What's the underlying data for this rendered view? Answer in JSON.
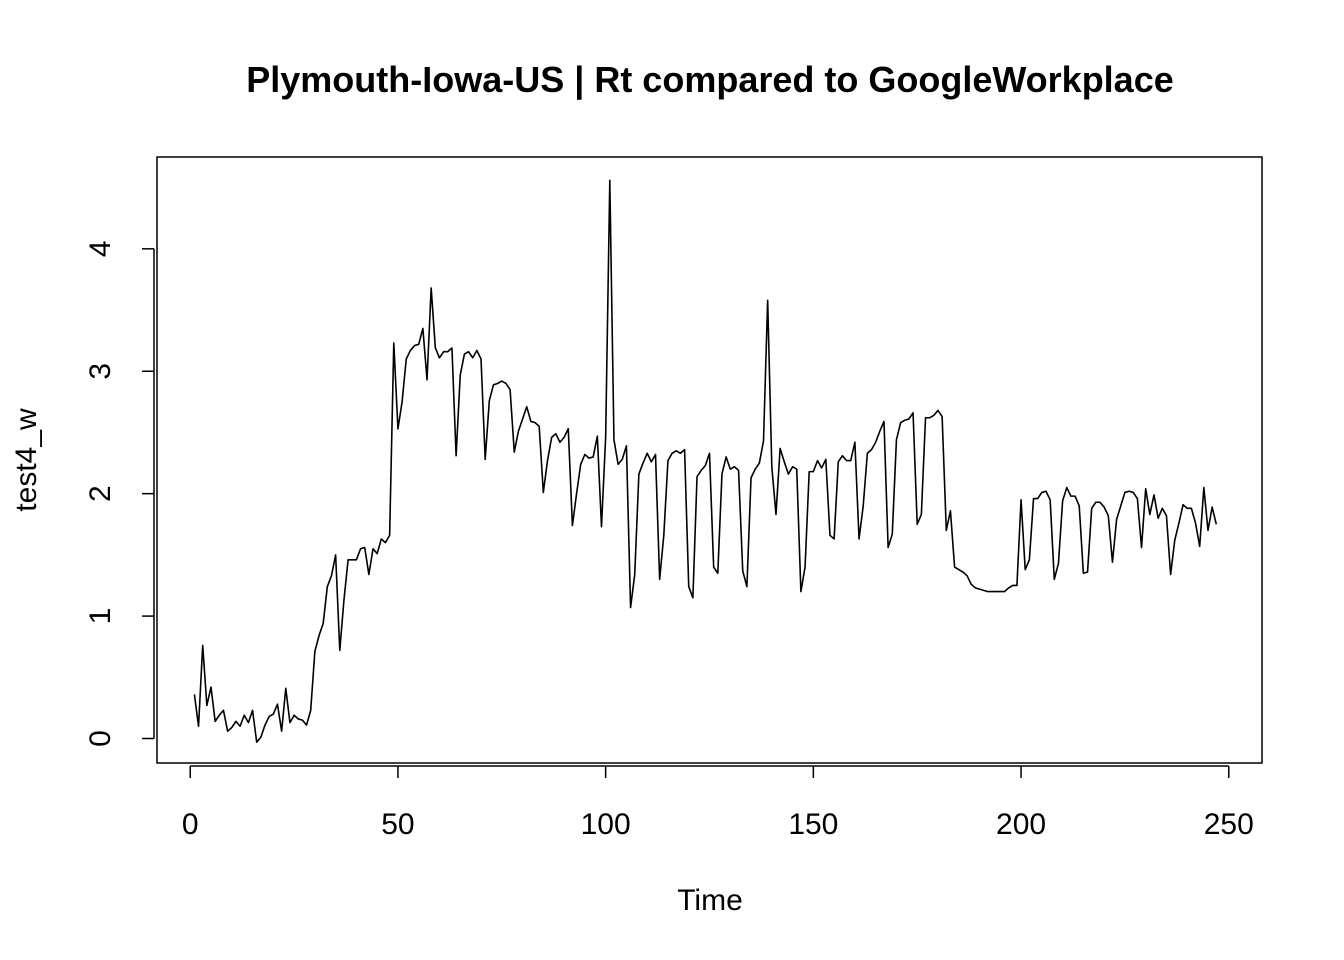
{
  "chart_data": {
    "type": "line",
    "title": "Plymouth-Iowa-US | Rt compared to GoogleWorkplace",
    "xlabel": "Time",
    "ylabel": "test4_w",
    "xlim": [
      -8,
      258
    ],
    "ylim": [
      -0.2,
      4.75
    ],
    "x_ticks": [
      0,
      50,
      100,
      150,
      200,
      250
    ],
    "x_tick_labels": [
      "0",
      "50",
      "100",
      "150",
      "200",
      "250"
    ],
    "y_ticks": [
      0,
      1,
      2,
      3,
      4
    ],
    "y_tick_labels": [
      "0",
      "1",
      "2",
      "3",
      "4"
    ],
    "grid": false,
    "legend": "none",
    "series": [
      {
        "color": "#000000",
        "x_start": 1,
        "values": [
          0.36,
          0.1,
          0.76,
          0.27,
          0.42,
          0.14,
          0.19,
          0.23,
          0.06,
          0.09,
          0.14,
          0.1,
          0.19,
          0.13,
          0.23,
          -0.03,
          0.01,
          0.11,
          0.18,
          0.2,
          0.28,
          0.06,
          0.41,
          0.13,
          0.19,
          0.16,
          0.15,
          0.11,
          0.23,
          0.71,
          0.84,
          0.94,
          1.24,
          1.33,
          1.5,
          0.72,
          1.13,
          1.46,
          1.46,
          1.46,
          1.55,
          1.56,
          1.34,
          1.55,
          1.51,
          1.63,
          1.6,
          1.66,
          3.23,
          2.53,
          2.75,
          3.1,
          3.17,
          3.21,
          3.22,
          3.35,
          2.93,
          3.68,
          3.19,
          3.11,
          3.16,
          3.16,
          3.19,
          2.31,
          2.97,
          3.14,
          3.16,
          3.11,
          3.17,
          3.1,
          2.28,
          2.76,
          2.89,
          2.9,
          2.92,
          2.9,
          2.85,
          2.34,
          2.51,
          2.61,
          2.71,
          2.59,
          2.58,
          2.55,
          2.01,
          2.27,
          2.46,
          2.49,
          2.42,
          2.46,
          2.53,
          1.74,
          2.0,
          2.24,
          2.32,
          2.29,
          2.3,
          2.47,
          1.73,
          2.46,
          4.56,
          2.44,
          2.24,
          2.28,
          2.39,
          1.07,
          1.34,
          2.16,
          2.25,
          2.33,
          2.26,
          2.32,
          1.3,
          1.66,
          2.27,
          2.33,
          2.35,
          2.33,
          2.36,
          1.24,
          1.15,
          2.14,
          2.19,
          2.23,
          2.33,
          1.4,
          1.35,
          2.16,
          2.3,
          2.2,
          2.22,
          2.19,
          1.37,
          1.24,
          2.13,
          2.2,
          2.25,
          2.43,
          3.58,
          2.22,
          1.83,
          2.37,
          2.26,
          2.16,
          2.22,
          2.2,
          1.2,
          1.4,
          2.18,
          2.18,
          2.27,
          2.21,
          2.28,
          1.66,
          1.63,
          2.26,
          2.31,
          2.27,
          2.27,
          2.42,
          1.63,
          1.9,
          2.33,
          2.36,
          2.42,
          2.51,
          2.59,
          1.56,
          1.67,
          2.44,
          2.58,
          2.6,
          2.61,
          2.66,
          1.75,
          1.83,
          2.62,
          2.62,
          2.64,
          2.68,
          2.63,
          1.7,
          1.86,
          1.4,
          1.38,
          1.36,
          1.33,
          1.26,
          1.23,
          1.22,
          1.21,
          1.2,
          1.2,
          1.2,
          1.2,
          1.2,
          1.23,
          1.25,
          1.25,
          1.95,
          1.38,
          1.46,
          1.96,
          1.96,
          2.01,
          2.02,
          1.95,
          1.3,
          1.43,
          1.94,
          2.05,
          1.98,
          1.98,
          1.9,
          1.35,
          1.36,
          1.88,
          1.93,
          1.93,
          1.89,
          1.82,
          1.44,
          1.79,
          1.9,
          2.01,
          2.02,
          2.01,
          1.96,
          1.56,
          2.04,
          1.83,
          1.99,
          1.8,
          1.88,
          1.82,
          1.34,
          1.62,
          1.76,
          1.91,
          1.88,
          1.88,
          1.76,
          1.57,
          2.05,
          1.7,
          1.89,
          1.75
        ]
      }
    ]
  }
}
